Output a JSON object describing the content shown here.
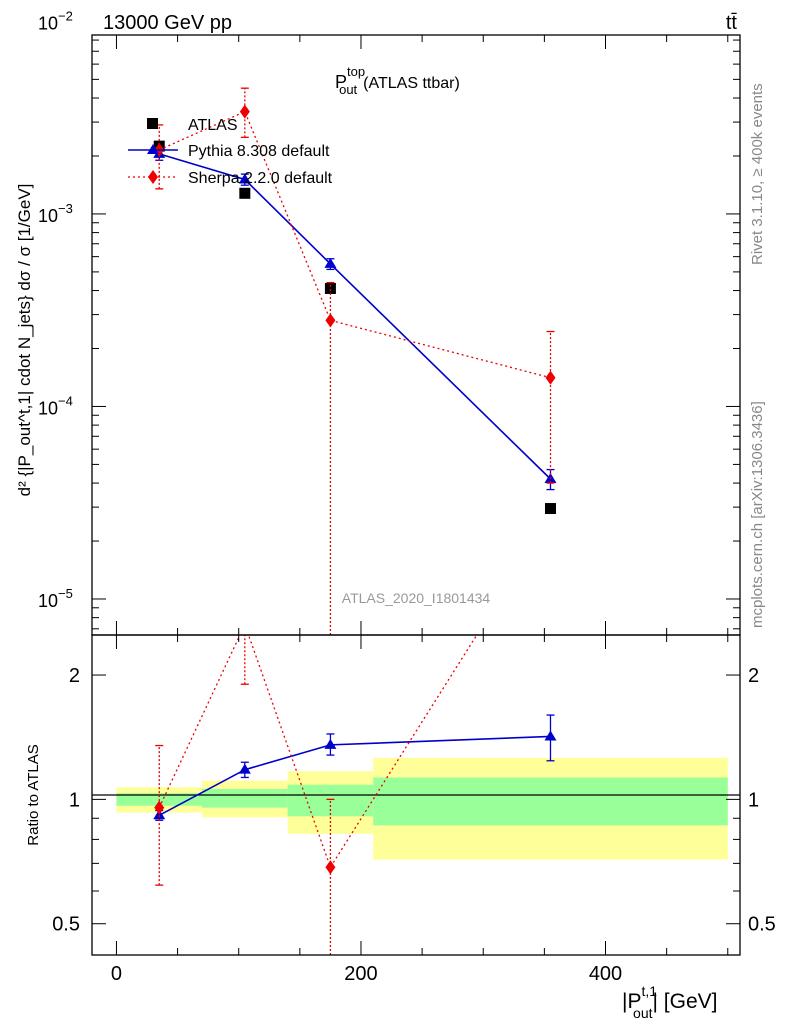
{
  "header": {
    "energy_label": "13000 GeV pp",
    "process_label": "tt̄"
  },
  "sidebar": {
    "rivet_label": "Rivet 3.1.10, ≥ 400k events",
    "mcplots_label": "mcplots.cern.ch [arXiv:1306.3436]"
  },
  "analysis_id": "ATLAS_2020_I1801434",
  "chart_data": [
    {
      "type": "line",
      "panel": "main",
      "title_main": "P",
      "title_sup": "top",
      "title_sub": "out",
      "title_suffix": "(ATLAS ttbar)",
      "ylabel": "d² {|P_out^t,1| cdot N_jets}  dσ / σ  [1/GeV]",
      "yscale": "log",
      "ylim": [
        6.5e-06,
        0.0085
      ],
      "xlim": [
        -20,
        510
      ],
      "y_ticks": [
        {
          "value": 0.01,
          "base": "10",
          "exp": "−2"
        },
        {
          "value": 0.001,
          "base": "10",
          "exp": "−3"
        },
        {
          "value": 0.0001,
          "base": "10",
          "exp": "−4"
        },
        {
          "value": 1e-05,
          "base": "10",
          "exp": "−5"
        }
      ],
      "legend_position": "top-left",
      "series": [
        {
          "name": "ATLAS",
          "marker": "square",
          "color": "#000000",
          "x": [
            35,
            105,
            175,
            355
          ],
          "y": [
            0.00225,
            0.00128,
            0.00041,
            2.95e-05
          ]
        },
        {
          "name": "Pythia 8.308 default",
          "marker": "triangle",
          "color": "#0000cc",
          "line": "solid",
          "x": [
            35,
            105,
            175,
            355
          ],
          "y": [
            0.00205,
            0.00151,
            0.00055,
            4.2e-05
          ],
          "yerr_low": [
            0.0019,
            0.00141,
            0.000515,
            3.7e-05
          ],
          "yerr_high": [
            0.0022,
            0.00161,
            0.000585,
            4.7e-05
          ]
        },
        {
          "name": "Sherpa 2.2.0 default",
          "marker": "diamond",
          "color": "#ee0000",
          "line": "dotted",
          "x": [
            35,
            105,
            175,
            355
          ],
          "y": [
            0.00215,
            0.0034,
            0.00028,
            0.000141
          ],
          "yerr_low": [
            0.00135,
            0.0025,
            1e-07,
            4e-05
          ],
          "yerr_high": [
            0.0029,
            0.0045,
            0.00044,
            0.000245
          ]
        }
      ]
    },
    {
      "type": "line",
      "panel": "ratio",
      "ylabel": "Ratio to ATLAS",
      "xlabel_main": "|P",
      "xlabel_sup": "t,1",
      "xlabel_sub": "out",
      "xlabel_suffix": "| [GeV]",
      "yscale": "log",
      "ylim": [
        0.42,
        2.5
      ],
      "xlim": [
        -20,
        510
      ],
      "x_ticks": [
        0,
        200,
        400
      ],
      "y_ticks": [
        0.5,
        1,
        2
      ],
      "reference_line": 1,
      "bands": [
        {
          "x_lo": 0,
          "x_hi": 70,
          "yellow": [
            0.93,
            1.07
          ],
          "green": [
            0.965,
            1.035
          ]
        },
        {
          "x_lo": 70,
          "x_hi": 140,
          "yellow": [
            0.905,
            1.11
          ],
          "green": [
            0.955,
            1.06
          ]
        },
        {
          "x_lo": 140,
          "x_hi": 210,
          "yellow": [
            0.825,
            1.17
          ],
          "green": [
            0.91,
            1.085
          ]
        },
        {
          "x_lo": 210,
          "x_hi": 500,
          "yellow": [
            0.715,
            1.26
          ],
          "green": [
            0.865,
            1.13
          ]
        }
      ],
      "series": [
        {
          "name": "Pythia 8.308 default",
          "marker": "triangle",
          "color": "#0000cc",
          "line": "solid",
          "x": [
            35,
            105,
            175,
            355
          ],
          "y": [
            0.915,
            1.18,
            1.355,
            1.42
          ],
          "yerr_low": [
            0.89,
            1.13,
            1.28,
            1.24
          ],
          "yerr_high": [
            0.94,
            1.23,
            1.44,
            1.6
          ]
        },
        {
          "name": "Sherpa 2.2.0 default",
          "marker": "diamond",
          "color": "#ee0000",
          "line": "dotted",
          "x": [
            35,
            105,
            175,
            355
          ],
          "y": [
            0.955,
            2.65,
            0.685,
            4.8
          ],
          "yerr_low": [
            0.62,
            1.9,
            0.3,
            3.2
          ],
          "yerr_high": [
            1.35,
            3.5,
            1.0,
            6.5
          ]
        }
      ]
    }
  ]
}
